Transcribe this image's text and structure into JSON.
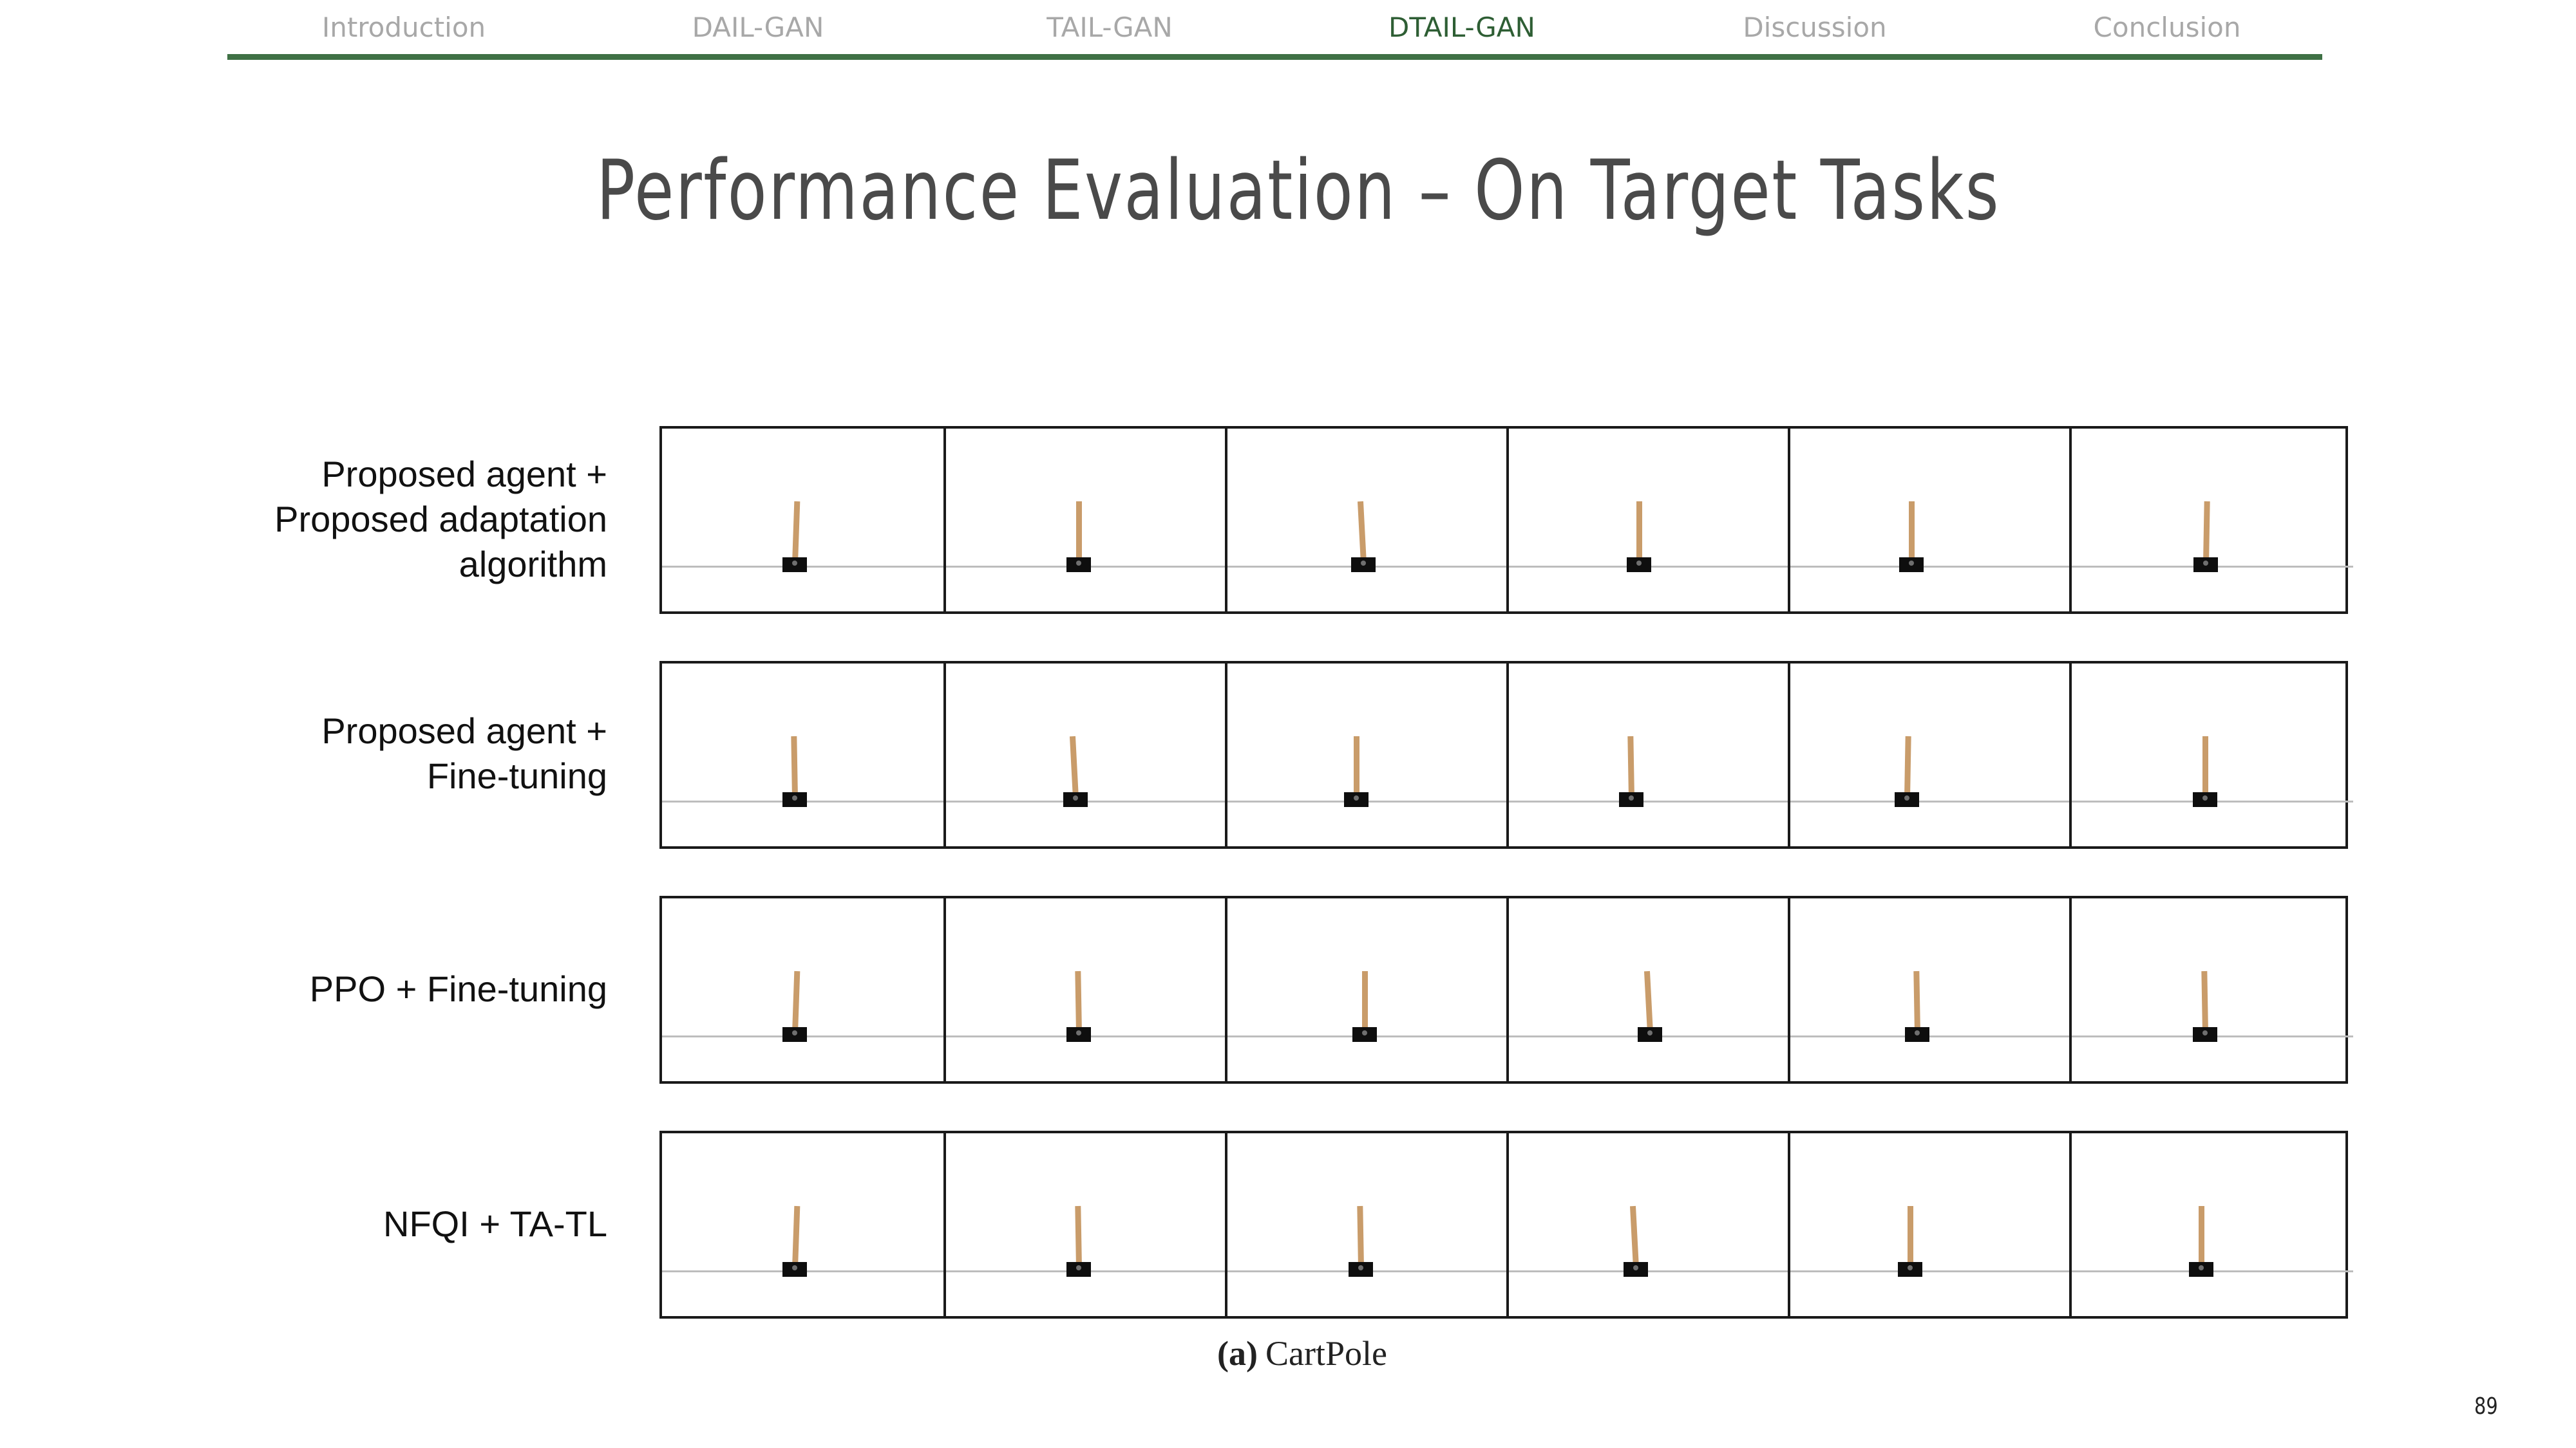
{
  "nav": {
    "items": [
      {
        "label": "Introduction",
        "active": false
      },
      {
        "label": "DAIL-GAN",
        "active": false
      },
      {
        "label": "TAIL-GAN",
        "active": false
      },
      {
        "label": "DTAIL-GAN",
        "active": true
      },
      {
        "label": "Discussion",
        "active": false
      },
      {
        "label": "Conclusion",
        "active": false
      }
    ]
  },
  "title": "Performance Evaluation – On Target Tasks",
  "figure": {
    "rows": [
      {
        "label_lines": [
          "Proposed agent +",
          "Proposed adaptation",
          "algorithm"
        ],
        "pole_angles_deg": [
          2,
          0,
          -3,
          0,
          0,
          1
        ]
      },
      {
        "label_lines": [
          "Proposed agent +",
          "Fine-tuning"
        ],
        "pole_angles_deg": [
          -1,
          -3,
          0,
          -1,
          1,
          0
        ]
      },
      {
        "label_lines": [
          "PPO + Fine-tuning"
        ],
        "pole_angles_deg": [
          2,
          -1,
          0,
          -3,
          -1,
          -1
        ]
      },
      {
        "label_lines": [
          "NFQI + TA-TL"
        ],
        "pole_angles_deg": [
          2,
          -1,
          -1,
          -3,
          0,
          0
        ]
      }
    ],
    "caption_tag": "(a)",
    "caption_text": "CartPole"
  },
  "colors": {
    "nav_active": "#2e5e34",
    "nav_inactive": "#a8a8a8",
    "nav_rule": "#3f7145",
    "title": "#4a4a4a",
    "pole": "#c99c6a",
    "cart": "#0e0e0e"
  },
  "page_number": "89"
}
